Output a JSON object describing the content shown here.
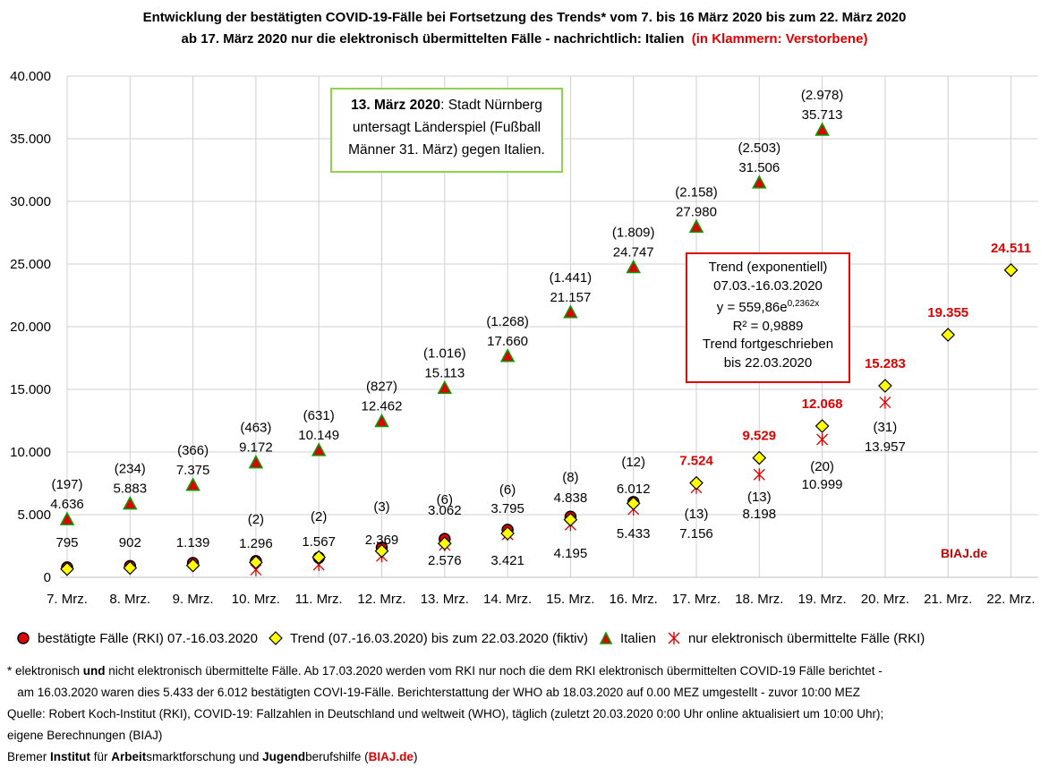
{
  "title": {
    "line1": "Entwicklung der bestätigten COVID-19-Fälle bei Fortsetzung des Trends* vom 7. bis 16 März 2020 bis zum 22. März 2020",
    "line2": "ab 17. März 2020 nur die elektronisch übermittelten Fälle - nachrichtlich: Italien",
    "line2_red": "(in Klammern: Verstorbene)"
  },
  "chart_data": {
    "type": "scatter",
    "categories": [
      "7. Mrz.",
      "8. Mrz.",
      "9. Mrz.",
      "10. Mrz.",
      "11. Mrz.",
      "12. Mrz.",
      "13. Mrz.",
      "14. Mrz.",
      "15. Mrz.",
      "16. Mrz.",
      "17. Mrz.",
      "18. Mrz.",
      "19. Mrz.",
      "20. Mrz.",
      "21. Mrz.",
      "22. Mrz."
    ],
    "ylim": [
      0,
      40000
    ],
    "yticks": [
      0,
      5000,
      10000,
      15000,
      20000,
      25000,
      30000,
      35000,
      40000
    ],
    "ytick_labels": [
      "0",
      "5.000",
      "10.000",
      "15.000",
      "20.000",
      "25.000",
      "30.000",
      "35.000",
      "40.000"
    ],
    "series": [
      {
        "name": "bestätigte Fälle (RKI) 07.-16.03.2020",
        "marker": "circle",
        "color": "#e00000",
        "values": [
          795,
          902,
          1139,
          1296,
          1567,
          2369,
          3062,
          3795,
          4838,
          6012,
          null,
          null,
          null,
          null,
          null,
          null
        ],
        "labels": [
          "795",
          "902",
          "1.139",
          "1.296",
          "1.567",
          "2.369",
          "3.062",
          "3.795",
          "4.838",
          "6.012",
          null,
          null,
          null,
          null,
          null,
          null
        ],
        "deaths": [
          null,
          null,
          null,
          "(2)",
          "(2)",
          "(3)",
          "(6)",
          "(6)",
          "(8)",
          "(12)",
          null,
          null,
          null,
          null,
          null,
          null
        ]
      },
      {
        "name": "Trend (07.-16.03.2020) bis zum 22.03.2020 (fiktiv)",
        "marker": "diamond",
        "color": "#ffff00",
        "values": [
          660,
          750,
          950,
          1200,
          1600,
          2100,
          2700,
          3500,
          4600,
          5900,
          7524,
          9529,
          12068,
          15283,
          19355,
          24511
        ],
        "labels": [
          null,
          null,
          null,
          null,
          null,
          null,
          null,
          null,
          null,
          null,
          "7.524",
          "9.529",
          "12.068",
          "15.283",
          "19.355",
          "24.511"
        ]
      },
      {
        "name": "Italien",
        "marker": "triangle",
        "color": "#e00000",
        "values": [
          4636,
          5883,
          7375,
          9172,
          10149,
          12462,
          15113,
          17660,
          21157,
          24747,
          27980,
          31506,
          35713,
          null,
          null,
          null
        ],
        "labels": [
          "4.636",
          "5.883",
          "7.375",
          "9.172",
          "10.149",
          "12.462",
          "15.113",
          "17.660",
          "21.157",
          "24.747",
          "27.980",
          "31.506",
          "35.713",
          null,
          null,
          null
        ],
        "deaths": [
          "(197)",
          "(234)",
          "(366)",
          "(463)",
          "(631)",
          "(827)",
          "(1.016)",
          "(1.268)",
          "(1.441)",
          "(1.809)",
          "(2.158)",
          "(2.503)",
          "(2.978)",
          null,
          null,
          null
        ]
      },
      {
        "name": "nur elektronisch übermittelte Fälle (RKI)",
        "marker": "asterisk",
        "color": "#e00000",
        "values": [
          null,
          null,
          null,
          600,
          1000,
          1700,
          2576,
          3421,
          4195,
          5433,
          7156,
          8198,
          10999,
          13957,
          null,
          null
        ],
        "labels": [
          null,
          null,
          null,
          null,
          null,
          null,
          "2.576",
          "3.421",
          "4.195",
          "5.433",
          "7.156",
          "8.198",
          "10.999",
          "13.957",
          null,
          null
        ],
        "deaths": [
          null,
          null,
          null,
          null,
          null,
          null,
          null,
          null,
          null,
          null,
          "(13)",
          "(13)",
          "(20)",
          "(31)",
          null,
          null
        ]
      }
    ]
  },
  "annotations": {
    "green_box": {
      "bold": "13. März 2020",
      "text1": ": Stadt Nürnberg",
      "text2": "untersagt Länderspiel (Fußball",
      "text3": "Männer 31. März) gegen Italien."
    },
    "trend_box": {
      "l1": "Trend (exponentiell)",
      "l2": "07.03.-16.03.2020",
      "l3a": "y = 559,86e",
      "l3sup": "0,2362x",
      "l4": "R² = 0,9889",
      "l5": "Trend fortgeschrieben",
      "l6": "bis 22.03.2020"
    },
    "biaj": "BIAJ.de"
  },
  "legend": {
    "s1": "bestätigte Fälle (RKI) 07.-16.03.2020",
    "s2": "Trend (07.-16.03.2020) bis zum 22.03.2020 (fiktiv)",
    "s3": "Italien",
    "s4": "nur elektronisch übermittelte Fälle (RKI)"
  },
  "notes": {
    "n1a": "* elektronisch ",
    "n1b": "und",
    "n1c": " nicht elektronisch übermittelte  Fälle. Ab 17.03.2020 werden vom RKI nur noch die dem RKI elektronisch übermittelten COVID-19 Fälle berichtet -",
    "n2": "   am 16.03.2020 waren dies 5.433 der 6.012 bestätigten COVI-19-Fälle. Berichterstattung der WHO ab 18.03.2020 auf 0.00 MEZ umgestellt - zuvor 10:00 MEZ",
    "n3": "Quelle: Robert Koch-Institut (RKI), COVID-19: Fallzahlen in Deutschland und weltweit (WHO), täglich (zuletzt 20.03.2020 0:00 Uhr online aktualisiert um 10:00 Uhr);",
    "n4": "eigene Berechnungen (BIAJ)",
    "n5a": "Bremer ",
    "n5b": "Institut",
    "n5c": " für ",
    "n5d": "Arbeit",
    "n5e": "smarktforschung und ",
    "n5f": "Jugend",
    "n5g": "berufshilfe (",
    "n5h": "BIAJ.de",
    "n5i": ")"
  }
}
